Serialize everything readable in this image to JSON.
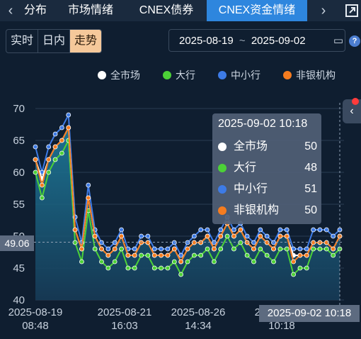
{
  "tabs": [
    {
      "label": "分布",
      "active": false
    },
    {
      "label": "市场情绪",
      "active": false
    },
    {
      "label": "CNEX债券",
      "active": false
    },
    {
      "label": "CNEX资金情绪",
      "active": true
    }
  ],
  "segments": [
    {
      "label": "实时",
      "active": false
    },
    {
      "label": "日内",
      "active": false
    },
    {
      "label": "走势",
      "active": true
    }
  ],
  "date_range": {
    "start": "2025-08-19",
    "sep": "~",
    "end": "2025-09-02"
  },
  "colors": {
    "all": "#ffffff",
    "big": "#4cd137",
    "small": "#3d7be6",
    "nonbank": "#f57c1f"
  },
  "tooltip": {
    "time": "2025-09-02 10:18",
    "rows": [
      {
        "name": "全市场",
        "value": 50,
        "color": "#ffffff"
      },
      {
        "name": "大行",
        "value": 48,
        "color": "#4cd137"
      },
      {
        "name": "中小行",
        "value": 51,
        "color": "#3d7be6"
      },
      {
        "name": "非银机构",
        "value": 50,
        "color": "#f57c1f"
      }
    ]
  },
  "crosshair": {
    "y_label": "49.06",
    "x_label": "2025-09-02 10:18"
  },
  "chart_data": {
    "type": "line",
    "ylim": [
      40,
      70
    ],
    "yticks": [
      40,
      45,
      50,
      55,
      60,
      65,
      70
    ],
    "xticks": [
      {
        "date": "2025-08-19",
        "time": "08:48"
      },
      {
        "date": "2025-08-21",
        "time": "16:03"
      },
      {
        "date": "2025-08-26",
        "time": "14:34"
      },
      {
        "date": "2025-08-28",
        "time": "10:18"
      }
    ],
    "series": [
      {
        "name": "全市场",
        "key": "all",
        "values": [
          62,
          59,
          62,
          64,
          65,
          67,
          51,
          48,
          56,
          50,
          48,
          47,
          48,
          50,
          47,
          47,
          49,
          49,
          47,
          47,
          47,
          48,
          46,
          48,
          49,
          49,
          50,
          48,
          50,
          52,
          50,
          51,
          49,
          48,
          50,
          49,
          48,
          50,
          50,
          47,
          47,
          47,
          49,
          49,
          49,
          48,
          50
        ]
      },
      {
        "name": "大行",
        "key": "big",
        "values": [
          60,
          56,
          60,
          62,
          63,
          65,
          49,
          46,
          54,
          48,
          46,
          45,
          46,
          48,
          45,
          45,
          47,
          47,
          45,
          45,
          45,
          46,
          44,
          46,
          47,
          47,
          48,
          46,
          48,
          50,
          48,
          49,
          47,
          46,
          48,
          47,
          46,
          48,
          48,
          44,
          45,
          45,
          48,
          48,
          48,
          47,
          48
        ]
      },
      {
        "name": "中小行",
        "key": "small",
        "values": [
          64,
          60,
          64,
          66,
          67,
          69,
          53,
          49,
          58,
          51,
          49,
          48,
          49,
          51,
          48,
          48,
          50,
          50,
          48,
          48,
          48,
          49,
          47,
          49,
          50,
          51,
          51,
          49,
          51,
          53,
          51,
          52,
          50,
          49,
          51,
          50,
          49,
          51,
          51,
          48,
          48,
          48,
          51,
          51,
          51,
          50,
          51
        ]
      },
      {
        "name": "非银机构",
        "key": "nonbank",
        "values": [
          62,
          58,
          62,
          64,
          65,
          67,
          51,
          48,
          56,
          50,
          48,
          47,
          48,
          50,
          47,
          47,
          49,
          49,
          47,
          47,
          47,
          48,
          46,
          48,
          49,
          49,
          50,
          48,
          50,
          52,
          50,
          51,
          49,
          48,
          50,
          49,
          48,
          50,
          50,
          46,
          47,
          47,
          49,
          49,
          49,
          48,
          50
        ]
      }
    ]
  }
}
